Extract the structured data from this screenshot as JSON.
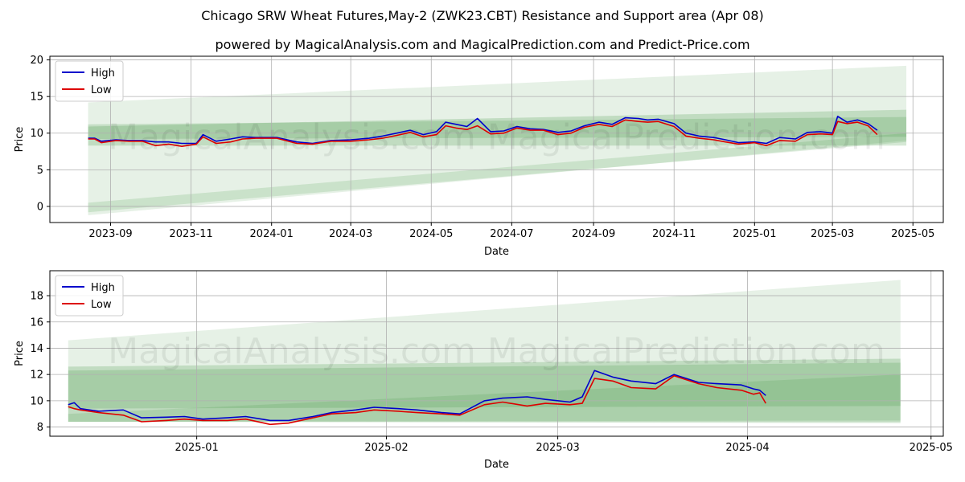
{
  "header": {
    "title": "Chicago SRW Wheat Futures,May-2 (ZWK23.CBT) Resistance and Support area (Apr 08)",
    "subtitle": "powered by MagicalAnalysis.com and MagicalPrediction.com and Predict-Price.com"
  },
  "watermark": "MagicalAnalysis.com   MagicalPrediction.com",
  "colors": {
    "high": "#0000cc",
    "low": "#dd0000",
    "band": "#2e8b2e",
    "grid": "#b0b0b0"
  },
  "chart_data": [
    {
      "type": "line",
      "panel": "top",
      "xlabel": "Date",
      "ylabel": "Price",
      "ylim": [
        -2.2,
        20.5
      ],
      "xlim": [
        "2023-07-17",
        "2025-05-24"
      ],
      "yticks": [
        0,
        5,
        10,
        15,
        20
      ],
      "xticks": [
        {
          "date": "2023-09-01",
          "label": "2023-09"
        },
        {
          "date": "2023-11-01",
          "label": "2023-11"
        },
        {
          "date": "2024-01-01",
          "label": "2024-01"
        },
        {
          "date": "2024-03-01",
          "label": "2024-03"
        },
        {
          "date": "2024-05-01",
          "label": "2024-05"
        },
        {
          "date": "2024-07-01",
          "label": "2024-07"
        },
        {
          "date": "2024-09-01",
          "label": "2024-09"
        },
        {
          "date": "2024-11-01",
          "label": "2024-11"
        },
        {
          "date": "2025-01-01",
          "label": "2025-01"
        },
        {
          "date": "2025-03-01",
          "label": "2025-03"
        },
        {
          "date": "2025-05-01",
          "label": "2025-05"
        }
      ],
      "grid": true,
      "legend": {
        "position": "top-left",
        "entries": [
          "High",
          "Low"
        ]
      },
      "bands": [
        {
          "name": "wide-support-resistance",
          "opacity": 0.12,
          "x": [
            "2023-08-15",
            "2025-04-26"
          ],
          "top": [
            14.2,
            19.2
          ],
          "bottom": [
            -1.2,
            9.0
          ]
        },
        {
          "name": "mid-band",
          "opacity": 0.2,
          "x": [
            "2023-08-15",
            "2025-04-26"
          ],
          "top": [
            10.9,
            13.2
          ],
          "bottom": [
            8.3,
            8.3
          ]
        },
        {
          "name": "inner-band",
          "opacity": 0.18,
          "x": [
            "2023-08-15",
            "2025-04-26"
          ],
          "top": [
            11.2,
            12.2
          ],
          "bottom": [
            9.2,
            9.5
          ]
        },
        {
          "name": "lower-rising-band",
          "opacity": 0.15,
          "x": [
            "2023-08-15",
            "2025-04-26"
          ],
          "top": [
            0.5,
            10.0
          ],
          "bottom": [
            -0.8,
            8.8
          ]
        }
      ],
      "series": [
        {
          "name": "High",
          "x": [
            "2023-08-15",
            "2023-08-20",
            "2023-08-25",
            "2023-09-05",
            "2023-09-15",
            "2023-09-25",
            "2023-10-05",
            "2023-10-15",
            "2023-10-25",
            "2023-11-05",
            "2023-11-10",
            "2023-11-20",
            "2023-12-01",
            "2023-12-10",
            "2023-12-20",
            "2024-01-05",
            "2024-01-20",
            "2024-02-01",
            "2024-02-15",
            "2024-03-01",
            "2024-03-15",
            "2024-03-25",
            "2024-04-05",
            "2024-04-15",
            "2024-04-25",
            "2024-05-05",
            "2024-05-12",
            "2024-05-20",
            "2024-05-28",
            "2024-06-05",
            "2024-06-15",
            "2024-06-25",
            "2024-07-05",
            "2024-07-15",
            "2024-07-25",
            "2024-08-05",
            "2024-08-15",
            "2024-08-25",
            "2024-09-05",
            "2024-09-15",
            "2024-09-25",
            "2024-10-05",
            "2024-10-12",
            "2024-10-20",
            "2024-11-01",
            "2024-11-10",
            "2024-11-20",
            "2024-12-01",
            "2024-12-10",
            "2024-12-20",
            "2025-01-01",
            "2025-01-10",
            "2025-01-20",
            "2025-02-01",
            "2025-02-10",
            "2025-02-20",
            "2025-03-01",
            "2025-03-05",
            "2025-03-12",
            "2025-03-20",
            "2025-03-28",
            "2025-04-04"
          ],
          "values": [
            9.3,
            9.3,
            8.9,
            9.1,
            9.0,
            9.0,
            8.8,
            8.8,
            8.6,
            8.6,
            9.8,
            8.9,
            9.2,
            9.5,
            9.4,
            9.4,
            8.8,
            8.6,
            9.0,
            9.1,
            9.3,
            9.6,
            10.0,
            10.4,
            9.8,
            10.2,
            11.5,
            11.2,
            10.9,
            12.0,
            10.2,
            10.3,
            10.9,
            10.6,
            10.5,
            10.1,
            10.3,
            11.0,
            11.5,
            11.2,
            12.1,
            12.0,
            11.8,
            11.9,
            11.3,
            10.0,
            9.6,
            9.4,
            9.1,
            8.7,
            8.8,
            8.6,
            9.4,
            9.2,
            10.1,
            10.2,
            10.0,
            12.3,
            11.5,
            11.8,
            11.3,
            10.4
          ]
        },
        {
          "name": "Low",
          "x": [
            "2023-08-15",
            "2023-08-20",
            "2023-08-25",
            "2023-09-05",
            "2023-09-15",
            "2023-09-25",
            "2023-10-05",
            "2023-10-15",
            "2023-10-25",
            "2023-11-05",
            "2023-11-10",
            "2023-11-20",
            "2023-12-01",
            "2023-12-10",
            "2023-12-20",
            "2024-01-05",
            "2024-01-20",
            "2024-02-01",
            "2024-02-15",
            "2024-03-01",
            "2024-03-15",
            "2024-03-25",
            "2024-04-05",
            "2024-04-15",
            "2024-04-25",
            "2024-05-05",
            "2024-05-12",
            "2024-05-20",
            "2024-05-28",
            "2024-06-05",
            "2024-06-15",
            "2024-06-25",
            "2024-07-05",
            "2024-07-15",
            "2024-07-25",
            "2024-08-05",
            "2024-08-15",
            "2024-08-25",
            "2024-09-05",
            "2024-09-15",
            "2024-09-25",
            "2024-10-05",
            "2024-10-12",
            "2024-10-20",
            "2024-11-01",
            "2024-11-10",
            "2024-11-20",
            "2024-12-01",
            "2024-12-10",
            "2024-12-20",
            "2025-01-01",
            "2025-01-10",
            "2025-01-20",
            "2025-02-01",
            "2025-02-10",
            "2025-02-20",
            "2025-03-01",
            "2025-03-05",
            "2025-03-12",
            "2025-03-20",
            "2025-03-28",
            "2025-04-04"
          ],
          "values": [
            9.2,
            9.2,
            8.7,
            9.0,
            8.9,
            8.9,
            8.3,
            8.5,
            8.2,
            8.5,
            9.5,
            8.6,
            8.8,
            9.2,
            9.3,
            9.3,
            8.6,
            8.5,
            8.9,
            8.9,
            9.1,
            9.3,
            9.7,
            10.1,
            9.5,
            9.8,
            11.0,
            10.7,
            10.5,
            11.0,
            9.9,
            10.0,
            10.7,
            10.4,
            10.4,
            9.8,
            10.0,
            10.8,
            11.2,
            10.9,
            11.8,
            11.6,
            11.5,
            11.6,
            10.9,
            9.6,
            9.3,
            9.1,
            8.8,
            8.5,
            8.7,
            8.3,
            9.0,
            8.9,
            9.8,
            9.9,
            9.8,
            11.6,
            11.3,
            11.5,
            11.0,
            9.8
          ]
        }
      ]
    },
    {
      "type": "line",
      "panel": "bottom",
      "xlabel": "Date",
      "ylabel": "Price",
      "ylim": [
        7.3,
        19.9
      ],
      "xlim": [
        "2024-12-08",
        "2025-05-03"
      ],
      "yticks": [
        8,
        10,
        12,
        14,
        16,
        18
      ],
      "xticks": [
        {
          "date": "2025-01-01",
          "label": "2025-01"
        },
        {
          "date": "2025-02-01",
          "label": "2025-02"
        },
        {
          "date": "2025-03-01",
          "label": "2025-03"
        },
        {
          "date": "2025-04-01",
          "label": "2025-04"
        },
        {
          "date": "2025-05-01",
          "label": "2025-05"
        }
      ],
      "grid": true,
      "legend": {
        "position": "top-left",
        "entries": [
          "High",
          "Low"
        ]
      },
      "bands": [
        {
          "name": "wide-support-resistance",
          "opacity": 0.12,
          "x": [
            "2024-12-11",
            "2025-04-26"
          ],
          "top": [
            14.6,
            19.2
          ],
          "bottom": [
            8.4,
            8.4
          ]
        },
        {
          "name": "mid-band",
          "opacity": 0.2,
          "x": [
            "2024-12-11",
            "2025-04-26"
          ],
          "top": [
            12.6,
            13.2
          ],
          "bottom": [
            8.4,
            8.3
          ]
        },
        {
          "name": "inner-band",
          "opacity": 0.18,
          "x": [
            "2024-12-11",
            "2025-04-26"
          ],
          "top": [
            12.3,
            12.9
          ],
          "bottom": [
            9.4,
            9.6
          ]
        },
        {
          "name": "lower-rising-band",
          "opacity": 0.15,
          "x": [
            "2024-12-11",
            "2025-04-26"
          ],
          "top": [
            9.0,
            12.0
          ],
          "bottom": [
            8.4,
            8.5
          ]
        }
      ],
      "series": [
        {
          "name": "High",
          "x": [
            "2024-12-11",
            "2024-12-12",
            "2024-12-13",
            "2024-12-16",
            "2024-12-20",
            "2024-12-23",
            "2024-12-27",
            "2024-12-30",
            "2025-01-02",
            "2025-01-06",
            "2025-01-09",
            "2025-01-13",
            "2025-01-16",
            "2025-01-20",
            "2025-01-23",
            "2025-01-27",
            "2025-01-30",
            "2025-02-03",
            "2025-02-06",
            "2025-02-10",
            "2025-02-13",
            "2025-02-17",
            "2025-02-20",
            "2025-02-24",
            "2025-02-27",
            "2025-03-03",
            "2025-03-05",
            "2025-03-07",
            "2025-03-10",
            "2025-03-13",
            "2025-03-17",
            "2025-03-20",
            "2025-03-24",
            "2025-03-27",
            "2025-03-31",
            "2025-04-02",
            "2025-04-03",
            "2025-04-04"
          ],
          "values": [
            9.7,
            9.85,
            9.4,
            9.2,
            9.3,
            8.7,
            8.75,
            8.8,
            8.6,
            8.7,
            8.8,
            8.5,
            8.5,
            8.8,
            9.1,
            9.3,
            9.5,
            9.4,
            9.3,
            9.1,
            9.0,
            10.0,
            10.2,
            10.3,
            10.1,
            9.9,
            10.3,
            12.3,
            11.8,
            11.5,
            11.3,
            12.0,
            11.4,
            11.3,
            11.2,
            10.9,
            10.8,
            10.4
          ]
        },
        {
          "name": "Low",
          "x": [
            "2024-12-11",
            "2024-12-12",
            "2024-12-13",
            "2024-12-16",
            "2024-12-20",
            "2024-12-23",
            "2024-12-27",
            "2024-12-30",
            "2025-01-02",
            "2025-01-06",
            "2025-01-09",
            "2025-01-13",
            "2025-01-16",
            "2025-01-20",
            "2025-01-23",
            "2025-01-27",
            "2025-01-30",
            "2025-02-03",
            "2025-02-06",
            "2025-02-10",
            "2025-02-13",
            "2025-02-17",
            "2025-02-20",
            "2025-02-24",
            "2025-02-27",
            "2025-03-03",
            "2025-03-05",
            "2025-03-07",
            "2025-03-10",
            "2025-03-13",
            "2025-03-17",
            "2025-03-20",
            "2025-03-24",
            "2025-03-27",
            "2025-03-31",
            "2025-04-02",
            "2025-04-03",
            "2025-04-04"
          ],
          "values": [
            9.55,
            9.4,
            9.3,
            9.1,
            8.9,
            8.4,
            8.5,
            8.6,
            8.5,
            8.5,
            8.6,
            8.2,
            8.3,
            8.7,
            9.0,
            9.1,
            9.3,
            9.2,
            9.1,
            9.0,
            8.9,
            9.7,
            9.9,
            9.6,
            9.8,
            9.7,
            9.8,
            11.7,
            11.5,
            11.0,
            10.9,
            11.9,
            11.3,
            11.0,
            10.8,
            10.5,
            10.6,
            9.8
          ]
        }
      ]
    }
  ]
}
